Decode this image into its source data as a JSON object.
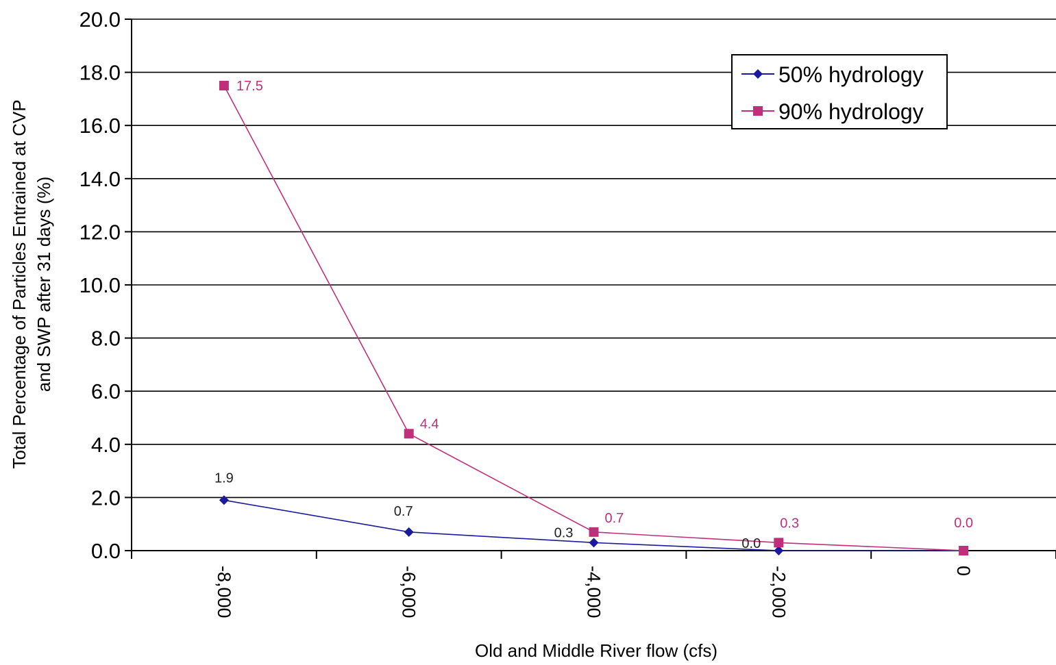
{
  "chart_data": {
    "type": "line",
    "title": "",
    "xlabel": "Old and Middle River flow (cfs)",
    "ylabel_line1": "Total Percentage of Particles Entrained at CVP",
    "ylabel_line2": "and SWP after 31 days (%)",
    "x": [
      -8000,
      -6000,
      -4000,
      -2000,
      0
    ],
    "x_tick_labels": [
      "-8,000",
      "-6,000",
      "-4,000",
      "-2,000",
      "0"
    ],
    "xlim": [
      -9000,
      1000
    ],
    "ylim": [
      0,
      20
    ],
    "y_ticks": [
      "0.0",
      "2.0",
      "4.0",
      "6.0",
      "8.0",
      "10.0",
      "12.0",
      "14.0",
      "16.0",
      "18.0",
      "20.0"
    ],
    "grid": true,
    "legend_position": "top-right",
    "series": [
      {
        "name": "50% hydrology",
        "color": "#1a1a9e",
        "marker": "diamond",
        "values": [
          1.9,
          0.7,
          0.3,
          0.0,
          0.0
        ],
        "data_labels": [
          "1.9",
          "0.7",
          "0.3",
          "0.0",
          ""
        ]
      },
      {
        "name": "90% hydrology",
        "color": "#c0307a",
        "marker": "square",
        "values": [
          17.5,
          4.4,
          0.7,
          0.3,
          0.0
        ],
        "data_labels": [
          "17.5",
          "4.4",
          "0.7",
          "0.3",
          "0.0"
        ]
      }
    ]
  }
}
